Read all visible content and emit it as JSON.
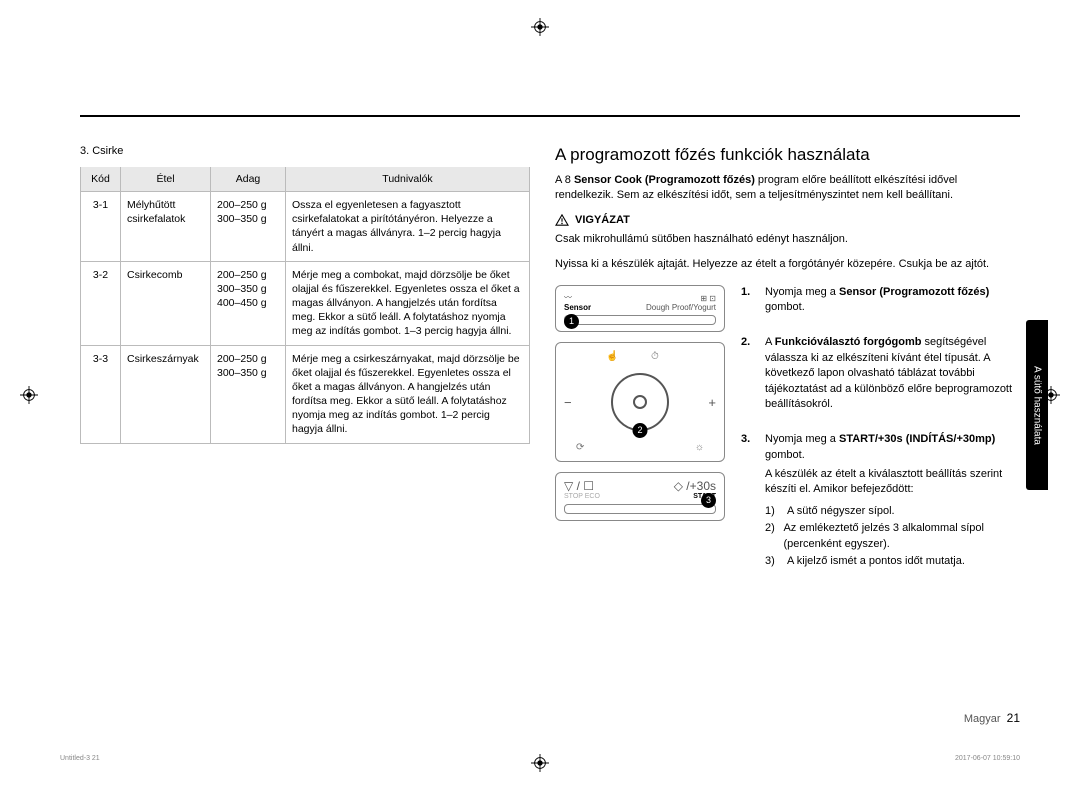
{
  "section_label": "3. Csirke",
  "table": {
    "headers": [
      "Kód",
      "Étel",
      "Adag",
      "Tudnivalók"
    ],
    "rows": [
      {
        "code": "3-1",
        "name": "Mélyhűtött csirkefalatok",
        "portions": [
          "200–250 g",
          "300–350 g"
        ],
        "info": "Ossza el egyenletesen a fagyasztott csirkefalatokat a pirítótányéron. Helyezze a tányért a magas állványra. 1–2 percig hagyja állni."
      },
      {
        "code": "3-2",
        "name": "Csirkecomb",
        "portions": [
          "200–250 g",
          "300–350 g",
          "400–450 g"
        ],
        "info": "Mérje meg a combokat, majd dörzsölje be őket olajjal és fűszerekkel. Egyenletes ossza el őket a magas állványon. A hangjelzés után fordítsa meg. Ekkor a sütő leáll. A folytatáshoz nyomja meg az indítás gombot. 1–3 percig hagyja állni."
      },
      {
        "code": "3-3",
        "name": "Csirkeszárnyak",
        "portions": [
          "200–250 g",
          "300–350 g"
        ],
        "info": "Mérje meg a csirkeszárnyakat, majd dörzsölje be őket olajjal és fűszerekkel. Egyenletes ossza el őket a magas állványon. A hangjelzés után fordítsa meg. Ekkor a sütő leáll. A folytatáshoz nyomja meg az indítás gombot. 1–2 percig hagyja állni."
      }
    ]
  },
  "right": {
    "title": "A programozott főzés funkciók használata",
    "intro_pre": "A 8 ",
    "intro_bold": "Sensor Cook (Programozott főzés)",
    "intro_post": " program előre beállított elkészítési idővel rendelkezik. Sem az elkészítési időt, sem a teljesítményszintet nem kell beállítani.",
    "caution_label": "VIGYÁZAT",
    "caution_1": "Csak mikrohullámú sütőben használható edényt használjon.",
    "caution_2": "Nyissa ki a készülék ajtaját. Helyezze az ételt a forgótányér közepére. Csukja be az ajtót.",
    "panel": {
      "sensor_label": "Sensor",
      "sensor_sub": "Dough Proof/Yogurt",
      "stop_label": "STOP  ECO",
      "start_label": "START",
      "start_sym": "◇ /+30s",
      "stop_sym": "▽ / ☐"
    },
    "steps": [
      {
        "n": "1.",
        "body_pre": "Nyomja meg a ",
        "body_bold": "Sensor (Programozott főzés)",
        "body_post": " gombot."
      },
      {
        "n": "2.",
        "body_pre": "A ",
        "body_bold": "Funkcióválasztó forgógomb",
        "body_post": " segítségével válassza ki az elkészíteni kívánt étel típusát. A következő lapon olvasható táblázat további tájékoztatást ad a különböző előre beprogramozott beállításokról."
      },
      {
        "n": "3.",
        "body_pre": "Nyomja meg a ",
        "body_bold": "START/+30s (INDÍTÁS/+30mp)",
        "body_post": " gombot.",
        "tail": "A készülék az ételt a kiválasztott beállítás szerint készíti el. Amikor befejeződött:",
        "list": [
          "A sütő négyszer sípol.",
          "Az emlékeztető jelzés 3 alkalommal sípol (percenként egyszer).",
          "A kijelző ismét a pontos időt mutatja."
        ]
      }
    ]
  },
  "side_tab": "A sütő használata",
  "footer": {
    "lang": "Magyar",
    "page": "21"
  },
  "tiny": {
    "left": "Untitled-3   21",
    "right": "2017-06-07   10:59:10"
  }
}
